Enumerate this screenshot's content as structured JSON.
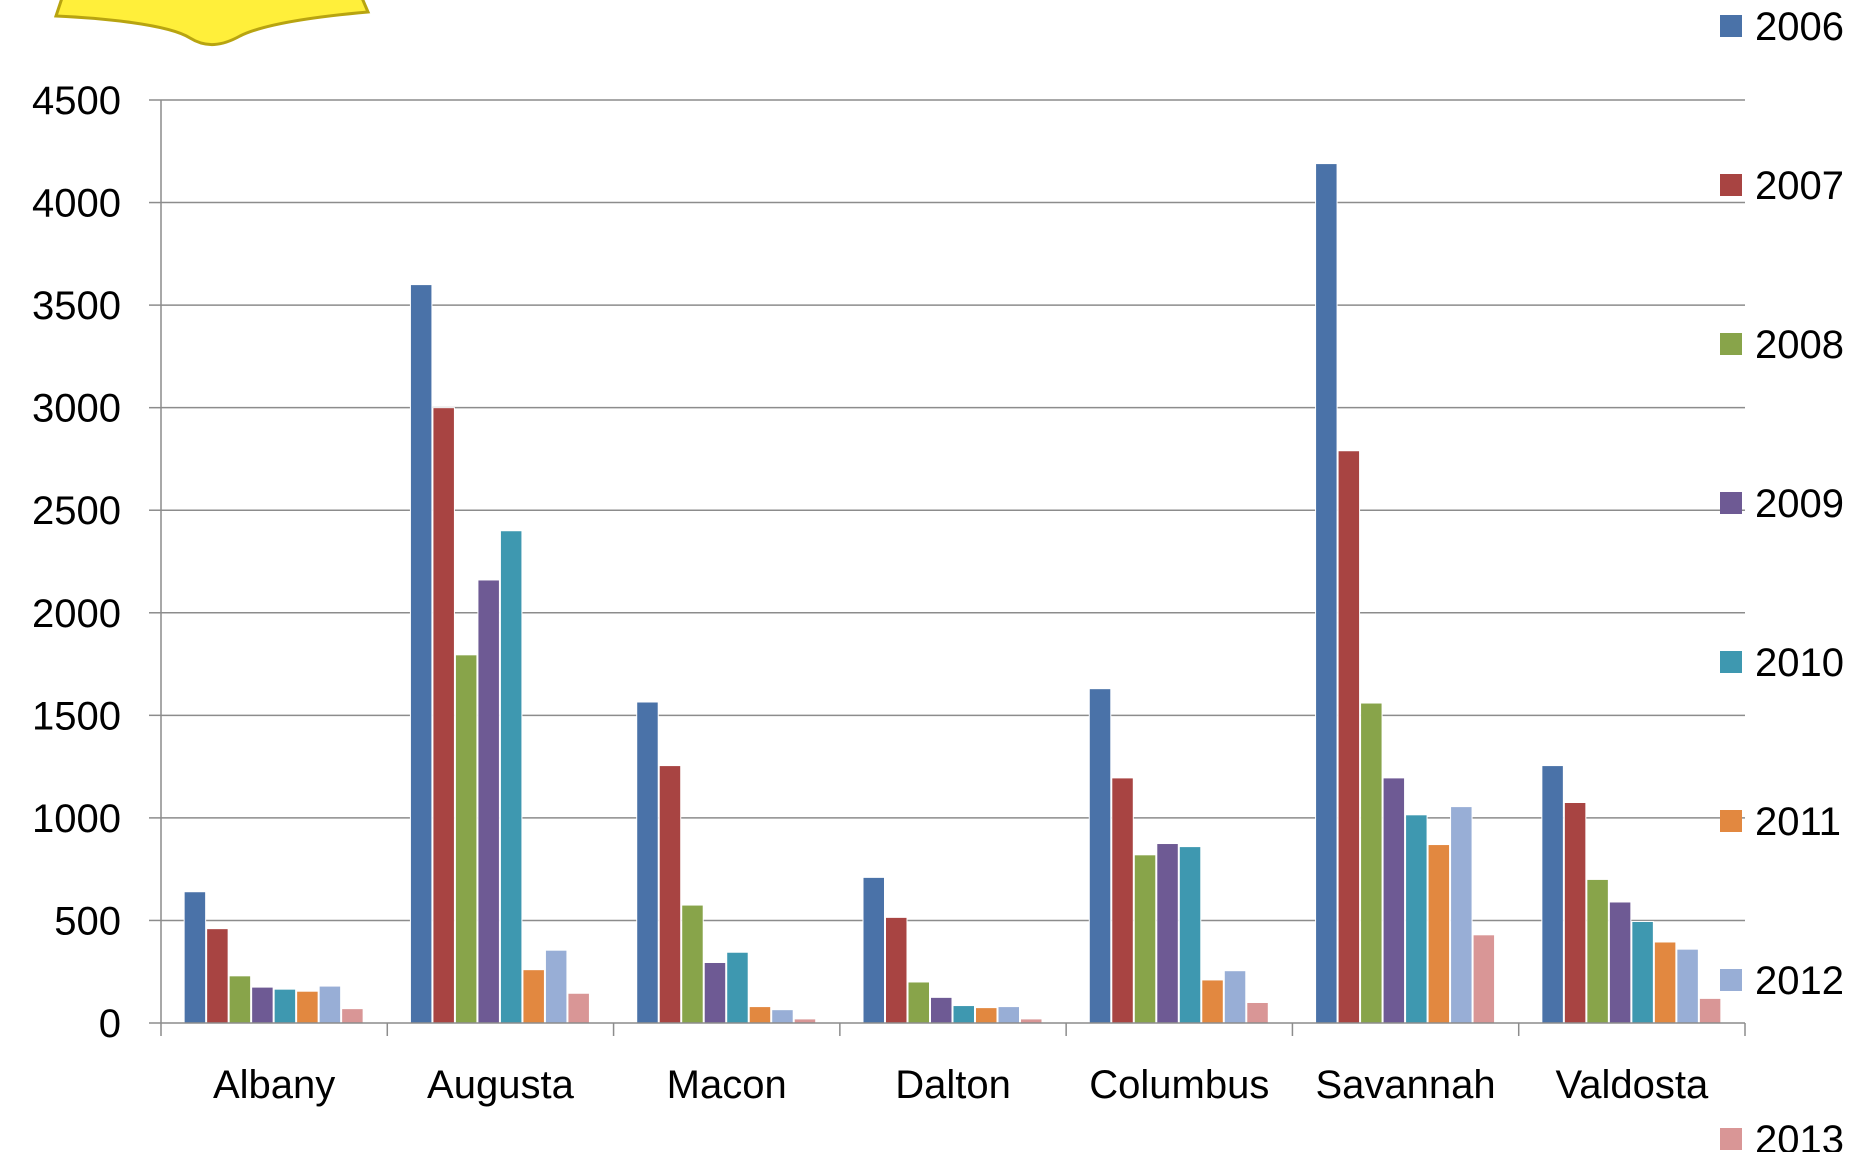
{
  "chart_data": {
    "type": "bar",
    "title": "",
    "xlabel": "",
    "ylabel": "",
    "ylim": [
      0,
      4500
    ],
    "y_ticks": [
      "0",
      "500",
      "1000",
      "1500",
      "2000",
      "2500",
      "3000",
      "3500",
      "4000",
      "4500"
    ],
    "grid": "horizontal",
    "legend_position": "right",
    "categories": [
      "Albany",
      "Augusta",
      "Macon",
      "Dalton",
      "Columbus",
      "Savannah",
      "Valdosta"
    ],
    "series": [
      {
        "name": "2006",
        "color": "#4a72a8",
        "values": [
          640,
          3600,
          1565,
          710,
          1630,
          4190,
          1255
        ]
      },
      {
        "name": "2007",
        "color": "#a84442",
        "values": [
          460,
          3000,
          1255,
          515,
          1195,
          2790,
          1075
        ]
      },
      {
        "name": "2008",
        "color": "#88a44a",
        "values": [
          230,
          1795,
          575,
          200,
          820,
          1560,
          700
        ]
      },
      {
        "name": "2009",
        "color": "#6e5a94",
        "values": [
          175,
          2160,
          295,
          125,
          875,
          1195,
          590
        ]
      },
      {
        "name": "2010",
        "color": "#3e98b0",
        "values": [
          165,
          2400,
          345,
          85,
          860,
          1015,
          495
        ]
      },
      {
        "name": "2011",
        "color": "#e28840",
        "values": [
          155,
          260,
          80,
          75,
          210,
          870,
          395
        ]
      },
      {
        "name": "2012",
        "color": "#98aed6",
        "values": [
          180,
          355,
          65,
          80,
          255,
          1055,
          360
        ]
      },
      {
        "name": "2013",
        "color": "#d99696",
        "values": [
          70,
          145,
          20,
          20,
          100,
          430,
          120
        ]
      }
    ]
  },
  "decor": {
    "banner_fill": "#ffef3a",
    "banner_stroke": "#b8a410"
  }
}
